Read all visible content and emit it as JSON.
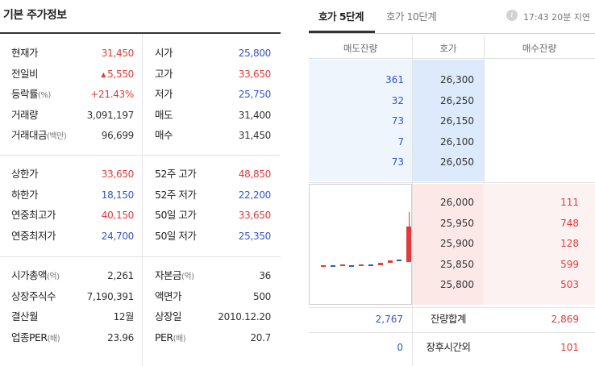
{
  "left": {
    "title": "기본 주가정보",
    "section1": [
      {
        "label": "현재가",
        "unit": "",
        "value": "31,450",
        "color": "red",
        "label2": "시가",
        "unit2": "",
        "value2": "25,800",
        "color2": "blue"
      },
      {
        "label": "전일비",
        "unit": "",
        "value": "5,550",
        "arrow": "▲",
        "color": "red",
        "label2": "고가",
        "unit2": "",
        "value2": "33,650",
        "color2": "red"
      },
      {
        "label": "등락률",
        "unit": "(%)",
        "value": "+21.43%",
        "color": "red",
        "label2": "저가",
        "unit2": "",
        "value2": "25,750",
        "color2": "blue"
      },
      {
        "label": "거래량",
        "unit": "",
        "value": "3,091,197",
        "color": "dark",
        "label2": "매도",
        "unit2": "",
        "value2": "31,400",
        "color2": "dark"
      },
      {
        "label": "거래대금",
        "unit": "(백만)",
        "value": "96,699",
        "color": "dark",
        "label2": "매수",
        "unit2": "",
        "value2": "31,450",
        "color2": "dark"
      }
    ],
    "section2": [
      {
        "label": "상한가",
        "unit": "",
        "value": "33,650",
        "color": "red",
        "label2": "52주 고가",
        "unit2": "",
        "value2": "48,850",
        "color2": "red"
      },
      {
        "label": "하한가",
        "unit": "",
        "value": "18,150",
        "color": "blue",
        "label2": "52주 저가",
        "unit2": "",
        "value2": "22,200",
        "color2": "blue"
      },
      {
        "label": "연중최고가",
        "unit": "",
        "value": "40,150",
        "color": "red",
        "label2": "50일 고가",
        "unit2": "",
        "value2": "33,650",
        "color2": "red"
      },
      {
        "label": "연중최저가",
        "unit": "",
        "value": "24,700",
        "color": "blue",
        "label2": "50일 저가",
        "unit2": "",
        "value2": "25,350",
        "color2": "blue"
      }
    ],
    "section3": [
      {
        "label": "시가총액",
        "unit": "(억)",
        "value": "2,261",
        "color": "dark",
        "label2": "자본금",
        "unit2": "(억)",
        "value2": "36",
        "color2": "dark"
      },
      {
        "label": "상장주식수",
        "unit": "",
        "value": "7,190,391",
        "color": "dark",
        "label2": "액면가",
        "unit2": "",
        "value2": "500",
        "color2": "dark"
      },
      {
        "label": "결산월",
        "unit": "",
        "value": "12월",
        "color": "dark",
        "label2": "상장일",
        "unit2": "",
        "value2": "2010.12.20",
        "color2": "dark"
      },
      {
        "label": "업종PER",
        "unit": "(배)",
        "value": "23.96",
        "color": "dark",
        "label2": "PER",
        "unit2": "(배)",
        "value2": "20.7",
        "color2": "dark"
      }
    ]
  },
  "right": {
    "tabs": [
      {
        "label": "호가 5단계",
        "active": true
      },
      {
        "label": "호가 10단계",
        "active": false
      }
    ],
    "info_icon": "i",
    "delay_text": "17:43 20분 지연",
    "headers": [
      "매도잔량",
      "호가",
      "매수잔량"
    ],
    "asks": [
      {
        "volume": "361",
        "price": "26,300"
      },
      {
        "volume": "32",
        "price": "26,250"
      },
      {
        "volume": "73",
        "price": "26,150"
      },
      {
        "volume": "7",
        "price": "26,100"
      },
      {
        "volume": "73",
        "price": "26,050"
      }
    ],
    "bids": [
      {
        "price": "26,000",
        "volume": "111"
      },
      {
        "price": "25,950",
        "volume": "748"
      },
      {
        "price": "25,900",
        "volume": "128"
      },
      {
        "price": "25,850",
        "volume": "599"
      },
      {
        "price": "25,800",
        "volume": "503"
      }
    ],
    "summary": [
      {
        "left": "2,767",
        "label": "잔량합계",
        "right": "2,869"
      },
      {
        "left": "0",
        "label": "장후시간외",
        "right": "101"
      }
    ],
    "mini_chart": [
      {
        "open": 0,
        "close": 0.3,
        "up": true
      },
      {
        "open": 0.3,
        "close": 0,
        "up": false
      },
      {
        "open": 0.2,
        "close": 0.5,
        "up": true
      },
      {
        "open": 0.4,
        "close": 0.1,
        "up": false
      },
      {
        "open": 0.2,
        "close": 0.5,
        "up": true
      },
      {
        "open": 0.5,
        "close": 0.2,
        "up": false
      },
      {
        "open": 0.4,
        "close": 0.9,
        "up": true
      },
      {
        "open": 0.9,
        "close": 1.6,
        "up": true
      },
      {
        "open": 1.8,
        "close": 1.4,
        "up": false
      },
      {
        "open": 1.2,
        "close": 9.6,
        "high": 13.0,
        "up": true
      }
    ],
    "colors": {
      "red": "#e03a3a",
      "blue": "#3355c8"
    }
  }
}
